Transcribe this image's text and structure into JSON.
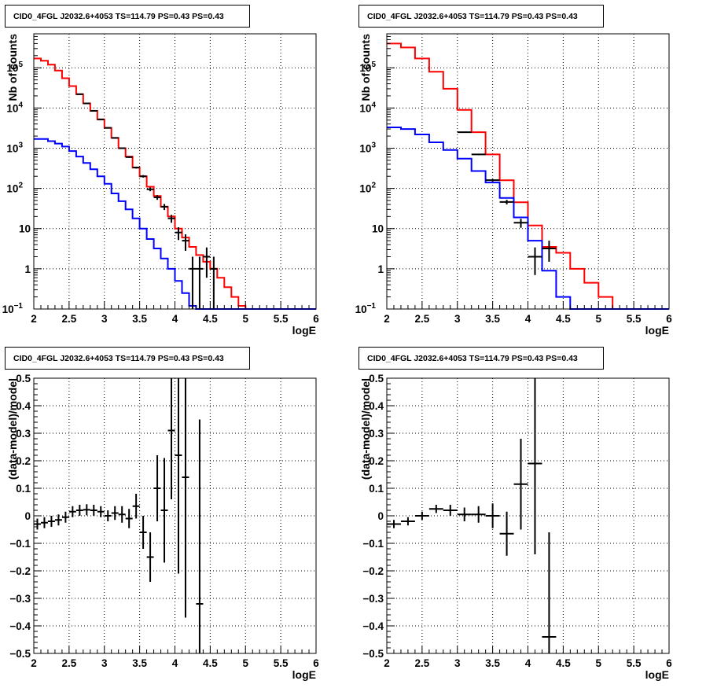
{
  "chart_data": [
    {
      "type": "histogram-line",
      "title": "CID0_4FGL J2032.6+4053 TS=114.79 PS=0.43 PS=0.43",
      "xlabel": "logE",
      "ylabel": "Nb of counts",
      "xlim": [
        2,
        6
      ],
      "ylim": [
        0.1,
        700000
      ],
      "yscale": "log",
      "xticks": [
        "2",
        "2.5",
        "3",
        "3.5",
        "4",
        "4.5",
        "5",
        "5.5",
        "6"
      ],
      "yticks": [
        {
          "v": 0.1,
          "label": "10",
          "sup": "−1"
        },
        {
          "v": 1,
          "label": "1"
        },
        {
          "v": 10,
          "label": "10"
        },
        {
          "v": 100,
          "label": "10",
          "sup": "2"
        },
        {
          "v": 1000,
          "label": "10",
          "sup": "3"
        },
        {
          "v": 10000,
          "label": "10",
          "sup": "4"
        },
        {
          "v": 100000,
          "label": "10",
          "sup": "5"
        }
      ],
      "grid": true,
      "bin_edges": [
        2,
        2.1,
        2.2,
        2.3,
        2.4,
        2.5,
        2.6,
        2.7,
        2.8,
        2.9,
        3.0,
        3.1,
        3.2,
        3.3,
        3.4,
        3.5,
        3.6,
        3.7,
        3.8,
        3.9,
        4.0,
        4.1,
        4.2,
        4.3,
        4.4,
        4.5,
        4.6,
        4.7,
        4.8,
        4.9,
        5.0,
        5.1,
        5.2,
        5.3,
        5.4,
        5.5,
        5.6,
        5.7,
        5.8,
        5.9,
        6.0
      ],
      "series": [
        {
          "color": "#ff0000",
          "values": [
            170000,
            150000,
            120000,
            85000,
            55000,
            35000,
            22000,
            13000,
            8500,
            5200,
            3200,
            1800,
            1000,
            620,
            330,
            200,
            110,
            65,
            35,
            20,
            10,
            6,
            3.5,
            2.2,
            1.5,
            1.0,
            0.6,
            0.35,
            0.2,
            0.12,
            0.1,
            0.1,
            0.1,
            0.1,
            0.1,
            0.1,
            0.1,
            0.1,
            0.1,
            0.1
          ]
        },
        {
          "color": "#0000ff",
          "values": [
            1700,
            1700,
            1500,
            1300,
            1100,
            850,
            620,
            430,
            300,
            200,
            130,
            75,
            48,
            30,
            18,
            10,
            5.5,
            3.2,
            1.8,
            1.0,
            0.5,
            0.25,
            0.12,
            0.1,
            0.1,
            0.1,
            0.1,
            0.1,
            0.1,
            0.1,
            0.1,
            0.1,
            0.1,
            0.1,
            0.1,
            0.1,
            0.1,
            0.1,
            0.1,
            0.1
          ]
        }
      ],
      "data_points": [
        {
          "x": 2.65,
          "y": 22000,
          "xerr": 0.05,
          "ylo": 21700,
          "yhi": 22300
        },
        {
          "x": 2.75,
          "y": 13000,
          "xerr": 0.05,
          "ylo": 12800,
          "yhi": 13200
        },
        {
          "x": 2.85,
          "y": 8500,
          "xerr": 0.05,
          "ylo": 8350,
          "yhi": 8650
        },
        {
          "x": 2.95,
          "y": 5200,
          "xerr": 0.05,
          "ylo": 5100,
          "yhi": 5300
        },
        {
          "x": 3.05,
          "y": 3200,
          "xerr": 0.05,
          "ylo": 3140,
          "yhi": 3260
        },
        {
          "x": 3.15,
          "y": 1800,
          "xerr": 0.05,
          "ylo": 1760,
          "yhi": 1840
        },
        {
          "x": 3.25,
          "y": 1000,
          "xerr": 0.05,
          "ylo": 970,
          "yhi": 1030
        },
        {
          "x": 3.35,
          "y": 600,
          "xerr": 0.05,
          "ylo": 575,
          "yhi": 625
        },
        {
          "x": 3.45,
          "y": 330,
          "xerr": 0.05,
          "ylo": 312,
          "yhi": 348
        },
        {
          "x": 3.55,
          "y": 200,
          "xerr": 0.05,
          "ylo": 186,
          "yhi": 214
        },
        {
          "x": 3.65,
          "y": 95,
          "xerr": 0.05,
          "ylo": 85,
          "yhi": 105
        },
        {
          "x": 3.75,
          "y": 60,
          "xerr": 0.05,
          "ylo": 52,
          "yhi": 68
        },
        {
          "x": 3.85,
          "y": 35,
          "xerr": 0.05,
          "ylo": 29,
          "yhi": 41
        },
        {
          "x": 3.95,
          "y": 18,
          "xerr": 0.05,
          "ylo": 14,
          "yhi": 22
        },
        {
          "x": 4.05,
          "y": 8,
          "xerr": 0.05,
          "ylo": 5.2,
          "yhi": 10.8
        },
        {
          "x": 4.15,
          "y": 5,
          "xerr": 0.05,
          "ylo": 2.8,
          "yhi": 7.2
        },
        {
          "x": 4.25,
          "y": 1,
          "xerr": 0.05,
          "ylo": 0.1,
          "yhi": 2.0
        },
        {
          "x": 4.35,
          "y": 1,
          "xerr": 0.05,
          "ylo": 0.1,
          "yhi": 2.0
        },
        {
          "x": 4.45,
          "y": 2,
          "xerr": 0.05,
          "ylo": 0.6,
          "yhi": 3.4
        },
        {
          "x": 4.55,
          "y": 1,
          "xerr": 0.05,
          "ylo": 0.1,
          "yhi": 2.0
        }
      ]
    },
    {
      "type": "histogram-line",
      "title": "CID0_4FGL J2032.6+4053 TS=114.79 PS=0.43 PS=0.43",
      "xlabel": "logE",
      "ylabel": "Nb of counts",
      "xlim": [
        2,
        6
      ],
      "ylim": [
        0.1,
        700000
      ],
      "yscale": "log",
      "xticks": [
        "2",
        "2.5",
        "3",
        "3.5",
        "4",
        "4.5",
        "5",
        "5.5",
        "6"
      ],
      "yticks": [
        {
          "v": 0.1,
          "label": "10",
          "sup": "−1"
        },
        {
          "v": 1,
          "label": "1"
        },
        {
          "v": 10,
          "label": "10"
        },
        {
          "v": 100,
          "label": "10",
          "sup": "2"
        },
        {
          "v": 1000,
          "label": "10",
          "sup": "3"
        },
        {
          "v": 10000,
          "label": "10",
          "sup": "4"
        },
        {
          "v": 100000,
          "label": "10",
          "sup": "5"
        }
      ],
      "grid": true,
      "bin_edges": [
        2,
        2.2,
        2.4,
        2.6,
        2.8,
        3.0,
        3.2,
        3.4,
        3.6,
        3.8,
        4.0,
        4.2,
        4.4,
        4.6,
        4.8,
        5.0,
        5.2,
        5.4,
        5.6,
        5.8,
        6.0
      ],
      "series": [
        {
          "color": "#ff0000",
          "values": [
            400000,
            320000,
            170000,
            80000,
            30000,
            9000,
            2500,
            700,
            160,
            45,
            12,
            3.5,
            2.5,
            1.0,
            0.45,
            0.2,
            0.1,
            0.1,
            0.1,
            0.1
          ]
        },
        {
          "color": "#0000ff",
          "values": [
            3300,
            3000,
            2200,
            1400,
            900,
            550,
            270,
            140,
            58,
            19,
            5,
            0.9,
            0.2,
            0.1,
            0.1,
            0.1,
            0.1,
            0.1,
            0.1,
            0.1
          ]
        }
      ],
      "data_points": [
        {
          "x": 3.1,
          "y": 2500,
          "xerr": 0.1,
          "ylo": 2440,
          "yhi": 2560
        },
        {
          "x": 3.3,
          "y": 700,
          "xerr": 0.1,
          "ylo": 672,
          "yhi": 728
        },
        {
          "x": 3.5,
          "y": 160,
          "xerr": 0.1,
          "ylo": 148,
          "yhi": 172
        },
        {
          "x": 3.7,
          "y": 46,
          "xerr": 0.1,
          "ylo": 40,
          "yhi": 52
        },
        {
          "x": 3.9,
          "y": 14,
          "xerr": 0.1,
          "ylo": 10.5,
          "yhi": 17.5
        },
        {
          "x": 4.1,
          "y": 2,
          "xerr": 0.1,
          "ylo": 0.7,
          "yhi": 3.4
        },
        {
          "x": 4.3,
          "y": 3.2,
          "xerr": 0.1,
          "ylo": 1.5,
          "yhi": 5.0
        }
      ]
    },
    {
      "type": "scatter",
      "title": "CID0_4FGL J2032.6+4053 TS=114.79 PS=0.43 PS=0.43",
      "xlabel": "logE",
      "ylabel": "(data-model)/model",
      "xlim": [
        2,
        6
      ],
      "ylim": [
        -0.5,
        0.5
      ],
      "yscale": "linear",
      "xticks": [
        "2",
        "2.5",
        "3",
        "3.5",
        "4",
        "4.5",
        "5",
        "5.5",
        "6"
      ],
      "yticks": [
        {
          "v": -0.5,
          "label": "−0.5"
        },
        {
          "v": -0.4,
          "label": "−0.4"
        },
        {
          "v": -0.3,
          "label": "−0.3"
        },
        {
          "v": -0.2,
          "label": "−0.2"
        },
        {
          "v": -0.1,
          "label": "−0.1"
        },
        {
          "v": 0,
          "label": "0"
        },
        {
          "v": 0.1,
          "label": "0.1"
        },
        {
          "v": 0.2,
          "label": "0.2"
        },
        {
          "v": 0.3,
          "label": "0.3"
        },
        {
          "v": 0.4,
          "label": "0.4"
        },
        {
          "v": 0.5,
          "label": "0.5"
        }
      ],
      "grid": true,
      "data_points": [
        {
          "x": 2.05,
          "y": -0.03,
          "xerr": 0.05,
          "ylo": -0.05,
          "yhi": -0.01
        },
        {
          "x": 2.15,
          "y": -0.025,
          "xerr": 0.05,
          "ylo": -0.045,
          "yhi": -0.005
        },
        {
          "x": 2.25,
          "y": -0.02,
          "xerr": 0.05,
          "ylo": -0.04,
          "yhi": 0.0
        },
        {
          "x": 2.35,
          "y": -0.015,
          "xerr": 0.05,
          "ylo": -0.035,
          "yhi": 0.005
        },
        {
          "x": 2.45,
          "y": -0.005,
          "xerr": 0.05,
          "ylo": -0.025,
          "yhi": 0.015
        },
        {
          "x": 2.55,
          "y": 0.015,
          "xerr": 0.05,
          "ylo": -0.005,
          "yhi": 0.035
        },
        {
          "x": 2.65,
          "y": 0.02,
          "xerr": 0.05,
          "ylo": 0.0,
          "yhi": 0.04
        },
        {
          "x": 2.75,
          "y": 0.022,
          "xerr": 0.05,
          "ylo": 0.002,
          "yhi": 0.042
        },
        {
          "x": 2.85,
          "y": 0.02,
          "xerr": 0.05,
          "ylo": 0.0,
          "yhi": 0.04
        },
        {
          "x": 2.95,
          "y": 0.015,
          "xerr": 0.05,
          "ylo": -0.005,
          "yhi": 0.035
        },
        {
          "x": 3.05,
          "y": 0.0,
          "xerr": 0.05,
          "ylo": -0.02,
          "yhi": 0.02
        },
        {
          "x": 3.15,
          "y": 0.01,
          "xerr": 0.05,
          "ylo": -0.015,
          "yhi": 0.035
        },
        {
          "x": 3.25,
          "y": 0.005,
          "xerr": 0.05,
          "ylo": -0.025,
          "yhi": 0.035
        },
        {
          "x": 3.35,
          "y": -0.01,
          "xerr": 0.05,
          "ylo": -0.045,
          "yhi": 0.025
        },
        {
          "x": 3.45,
          "y": 0.035,
          "xerr": 0.05,
          "ylo": -0.01,
          "yhi": 0.08
        },
        {
          "x": 3.55,
          "y": -0.06,
          "xerr": 0.05,
          "ylo": -0.12,
          "yhi": 0.0
        },
        {
          "x": 3.65,
          "y": -0.15,
          "xerr": 0.05,
          "ylo": -0.24,
          "yhi": -0.06
        },
        {
          "x": 3.75,
          "y": 0.1,
          "xerr": 0.05,
          "ylo": -0.02,
          "yhi": 0.22
        },
        {
          "x": 3.85,
          "y": 0.02,
          "xerr": 0.05,
          "ylo": -0.17,
          "yhi": 0.21
        },
        {
          "x": 3.95,
          "y": 0.31,
          "xerr": 0.05,
          "ylo": 0.06,
          "yhi": 0.5
        },
        {
          "x": 4.05,
          "y": 0.22,
          "xerr": 0.05,
          "ylo": -0.21,
          "yhi": 0.5
        },
        {
          "x": 4.15,
          "y": 0.14,
          "xerr": 0.05,
          "ylo": -0.37,
          "yhi": 0.5
        },
        {
          "x": 4.35,
          "y": -0.32,
          "xerr": 0.05,
          "ylo": -0.5,
          "yhi": 0.35
        }
      ]
    },
    {
      "type": "scatter",
      "title": "CID0_4FGL J2032.6+4053 TS=114.79 PS=0.43 PS=0.43",
      "xlabel": "logE",
      "ylabel": "(data-model)/model",
      "xlim": [
        2,
        6
      ],
      "ylim": [
        -0.5,
        0.5
      ],
      "yscale": "linear",
      "xticks": [
        "2",
        "2.5",
        "3",
        "3.5",
        "4",
        "4.5",
        "5",
        "5.5",
        "6"
      ],
      "yticks": [
        {
          "v": -0.5,
          "label": "−0.5"
        },
        {
          "v": -0.4,
          "label": "−0.4"
        },
        {
          "v": -0.3,
          "label": "−0.3"
        },
        {
          "v": -0.2,
          "label": "−0.2"
        },
        {
          "v": -0.1,
          "label": "−0.1"
        },
        {
          "v": 0,
          "label": "0"
        },
        {
          "v": 0.1,
          "label": "0.1"
        },
        {
          "v": 0.2,
          "label": "0.2"
        },
        {
          "v": 0.3,
          "label": "0.3"
        },
        {
          "v": 0.4,
          "label": "0.4"
        },
        {
          "v": 0.5,
          "label": "0.5"
        }
      ],
      "grid": true,
      "data_points": [
        {
          "x": 2.1,
          "y": -0.03,
          "xerr": 0.1,
          "ylo": -0.045,
          "yhi": -0.015
        },
        {
          "x": 2.3,
          "y": -0.02,
          "xerr": 0.1,
          "ylo": -0.035,
          "yhi": -0.005
        },
        {
          "x": 2.5,
          "y": 0.0,
          "xerr": 0.1,
          "ylo": -0.015,
          "yhi": 0.015
        },
        {
          "x": 2.7,
          "y": 0.025,
          "xerr": 0.1,
          "ylo": 0.01,
          "yhi": 0.04
        },
        {
          "x": 2.9,
          "y": 0.02,
          "xerr": 0.1,
          "ylo": 0.0,
          "yhi": 0.04
        },
        {
          "x": 3.1,
          "y": 0.005,
          "xerr": 0.1,
          "ylo": -0.02,
          "yhi": 0.03
        },
        {
          "x": 3.3,
          "y": 0.005,
          "xerr": 0.1,
          "ylo": -0.025,
          "yhi": 0.035
        },
        {
          "x": 3.5,
          "y": 0.0,
          "xerr": 0.1,
          "ylo": -0.045,
          "yhi": 0.045
        },
        {
          "x": 3.7,
          "y": -0.065,
          "xerr": 0.1,
          "ylo": -0.145,
          "yhi": 0.015
        },
        {
          "x": 3.9,
          "y": 0.115,
          "xerr": 0.1,
          "ylo": -0.05,
          "yhi": 0.28
        },
        {
          "x": 4.1,
          "y": 0.19,
          "xerr": 0.1,
          "ylo": -0.14,
          "yhi": 0.5
        },
        {
          "x": 4.3,
          "y": -0.44,
          "xerr": 0.1,
          "ylo": -0.5,
          "yhi": -0.06
        }
      ]
    }
  ]
}
